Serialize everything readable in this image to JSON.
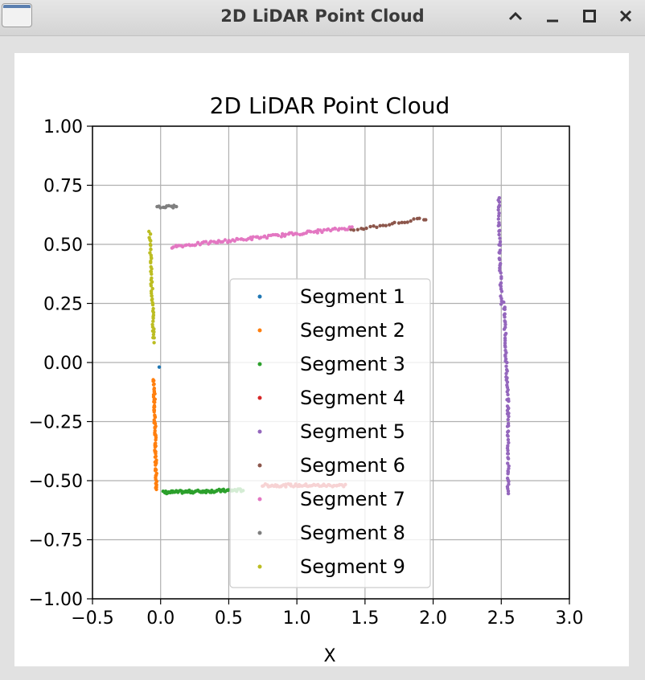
{
  "window": {
    "title": "2D LiDAR Point Cloud",
    "buttons": {
      "shade": "shade",
      "minimize": "minimize",
      "maximize": "maximize",
      "close": "close"
    }
  },
  "chart_data": {
    "type": "scatter",
    "title": "2D LiDAR Point Cloud",
    "xlabel": "X",
    "ylabel": "",
    "xlim": [
      -0.5,
      3.0
    ],
    "ylim": [
      -1.0,
      1.0
    ],
    "xticks": [
      -0.5,
      0.0,
      0.5,
      1.0,
      1.5,
      2.0,
      2.5,
      3.0
    ],
    "yticks": [
      -1.0,
      -0.75,
      -0.5,
      -0.25,
      0.0,
      0.25,
      0.5,
      0.75,
      1.0
    ],
    "xtick_labels": [
      "−0.5",
      "0.0",
      "0.5",
      "1.0",
      "1.5",
      "2.0",
      "2.5",
      "3.0"
    ],
    "ytick_labels": [
      "−1.00",
      "−0.75",
      "−0.50",
      "−0.25",
      "0.00",
      "0.25",
      "0.50",
      "0.75",
      "1.00"
    ],
    "grid": true,
    "legend_position": "center",
    "series": [
      {
        "name": "Segment 1",
        "color": "#1f77b4",
        "segments": [
          {
            "x0": -0.01,
            "y0": -0.02,
            "x1": -0.01,
            "y1": -0.02,
            "n": 1
          }
        ]
      },
      {
        "name": "Segment 2",
        "color": "#ff7f0e",
        "segments": [
          {
            "x0": -0.05,
            "y0": -0.07,
            "x1": -0.03,
            "y1": -0.54,
            "n": 70
          }
        ]
      },
      {
        "name": "Segment 3",
        "color": "#2ca02c",
        "segments": [
          {
            "x0": 0.02,
            "y0": -0.55,
            "x1": 0.6,
            "y1": -0.54,
            "n": 80
          }
        ]
      },
      {
        "name": "Segment 4",
        "color": "#d62728",
        "segments": [
          {
            "x0": 0.75,
            "y0": -0.52,
            "x1": 1.35,
            "y1": -0.52,
            "n": 60
          }
        ]
      },
      {
        "name": "Segment 5",
        "color": "#9467bd",
        "segments": [
          {
            "x0": 2.48,
            "y0": 0.7,
            "x1": 2.5,
            "y1": 0.25,
            "n": 40
          },
          {
            "x0": 2.52,
            "y0": 0.25,
            "x1": 2.55,
            "y1": -0.2,
            "n": 45
          },
          {
            "x0": 2.55,
            "y0": -0.2,
            "x1": 2.55,
            "y1": -0.56,
            "n": 35
          }
        ]
      },
      {
        "name": "Segment 6",
        "color": "#8c564b",
        "segments": [
          {
            "x0": 1.4,
            "y0": 0.56,
            "x1": 1.95,
            "y1": 0.61,
            "n": 25
          }
        ]
      },
      {
        "name": "Segment 7",
        "color": "#e377c2",
        "segments": [
          {
            "x0": 0.08,
            "y0": 0.49,
            "x1": 1.4,
            "y1": 0.57,
            "n": 95
          }
        ]
      },
      {
        "name": "Segment 8",
        "color": "#7f7f7f",
        "segments": [
          {
            "x0": -0.02,
            "y0": 0.66,
            "x1": 0.11,
            "y1": 0.66,
            "n": 12
          }
        ]
      },
      {
        "name": "Segment 9",
        "color": "#bcbd22",
        "segments": [
          {
            "x0": -0.08,
            "y0": 0.55,
            "x1": -0.05,
            "y1": 0.09,
            "n": 50
          }
        ]
      }
    ]
  }
}
